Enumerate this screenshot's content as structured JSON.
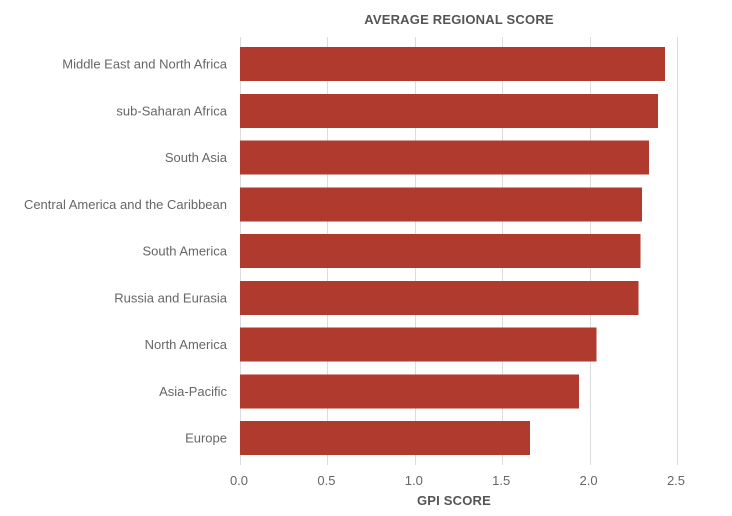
{
  "chart_data": {
    "type": "bar",
    "orientation": "horizontal",
    "title": "AVERAGE REGIONAL SCORE",
    "xlabel": "GPI SCORE",
    "ylabel": "",
    "categories": [
      "Middle East and North Africa",
      "sub-Saharan Africa",
      "South Asia",
      "Central America and the Caribbean",
      "South America",
      "Russia and Eurasia",
      "North America",
      "Asia-Pacific",
      "Europe"
    ],
    "values": [
      2.43,
      2.39,
      2.34,
      2.3,
      2.29,
      2.28,
      2.04,
      1.94,
      1.66
    ],
    "xlim": [
      0,
      2.5
    ],
    "xticks": [
      "0.0",
      "0.5",
      "1.0",
      "1.5",
      "2.0",
      "2.5"
    ],
    "xtick_values": [
      0,
      0.5,
      1.0,
      1.5,
      2.0,
      2.5
    ],
    "grid": true,
    "colors": {
      "bar": "#b03a2e",
      "grid": "#dcdcdc",
      "text": "#666666",
      "title": "#555555"
    }
  }
}
